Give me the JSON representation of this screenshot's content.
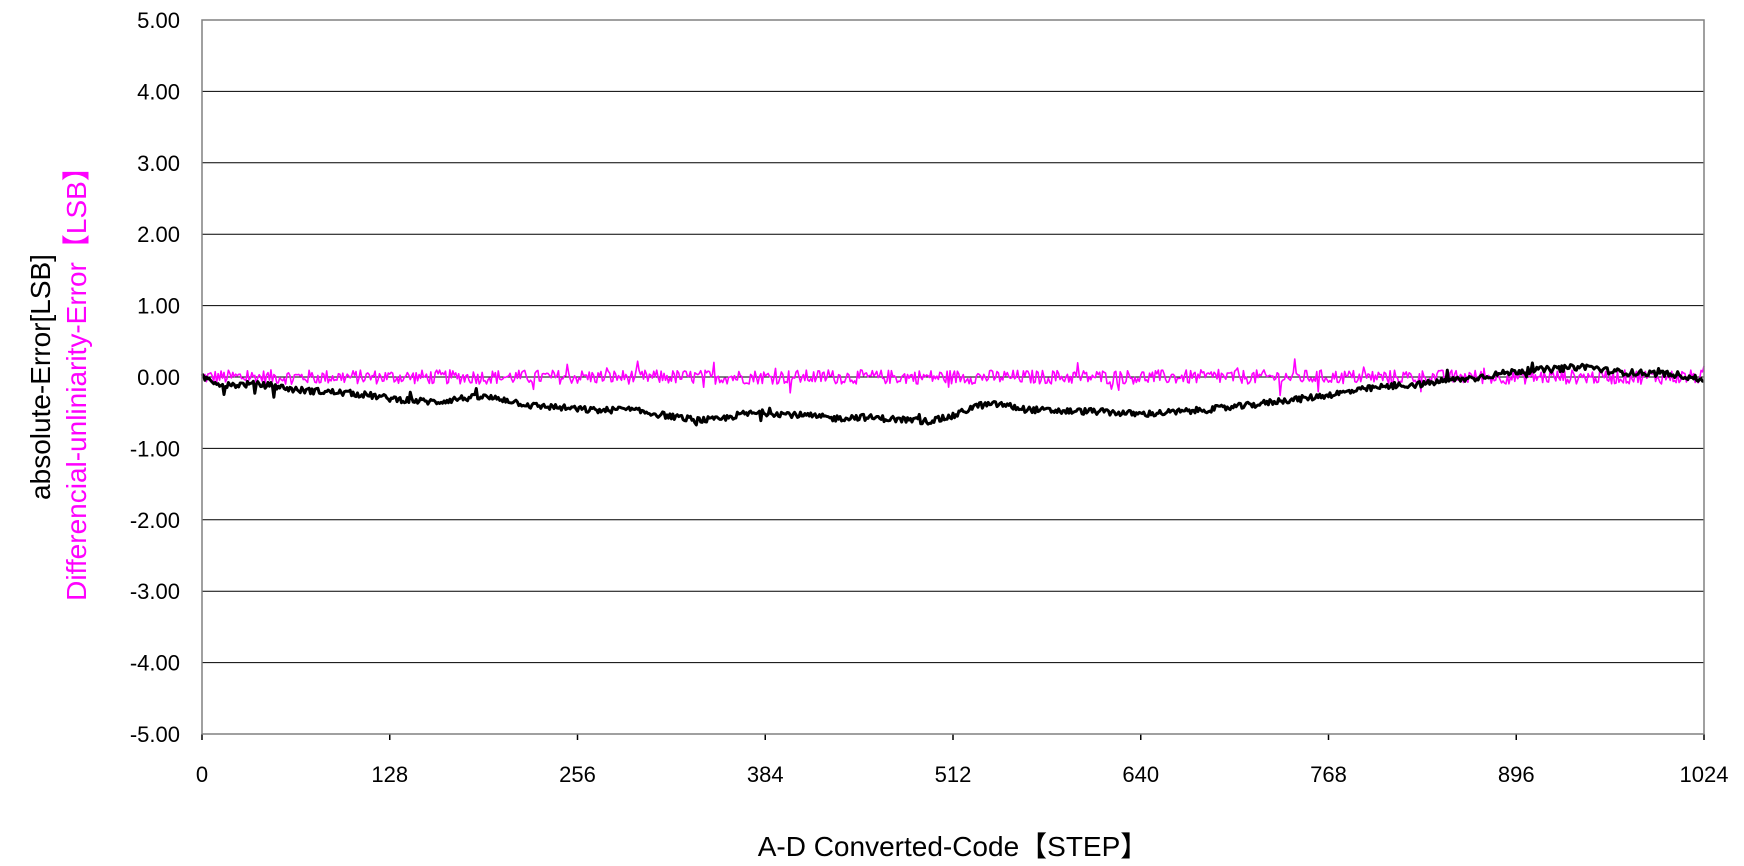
{
  "chart_data": {
    "type": "line",
    "title": "",
    "xlabel": "A-D Converted-Code【STEP】",
    "ylabel_lines": [
      {
        "text": "absolute-Error[LSB]",
        "color": "#000000"
      },
      {
        "text": "Differencial-unliniarity-Error【LSB】",
        "color": "#FF00FF"
      }
    ],
    "xlim": [
      0,
      1024
    ],
    "ylim": [
      -5,
      5
    ],
    "x_ticks": [
      "0",
      "128",
      "256",
      "384",
      "512",
      "640",
      "768",
      "896",
      "1024"
    ],
    "y_ticks": [
      "5.00",
      "4.00",
      "3.00",
      "2.00",
      "1.00",
      "0.00",
      "-1.00",
      "-2.00",
      "-3.00",
      "-4.00",
      "-5.00"
    ],
    "grid": "horizontal",
    "legend": "none",
    "series": [
      {
        "color": "#000000",
        "x": [
          0,
          16,
          32,
          48,
          64,
          80,
          96,
          112,
          128,
          144,
          160,
          176,
          192,
          208,
          224,
          240,
          256,
          272,
          288,
          304,
          320,
          336,
          352,
          368,
          384,
          400,
          416,
          432,
          448,
          464,
          480,
          496,
          512,
          528,
          544,
          560,
          576,
          592,
          608,
          624,
          640,
          656,
          672,
          688,
          704,
          720,
          736,
          752,
          768,
          784,
          800,
          816,
          832,
          848,
          864,
          880,
          896,
          912,
          928,
          944,
          960,
          976,
          992,
          1008,
          1024
        ],
        "y": [
          0.0,
          -0.12,
          -0.1,
          -0.12,
          -0.18,
          -0.2,
          -0.22,
          -0.25,
          -0.3,
          -0.33,
          -0.35,
          -0.3,
          -0.28,
          -0.32,
          -0.4,
          -0.42,
          -0.45,
          -0.47,
          -0.45,
          -0.5,
          -0.55,
          -0.6,
          -0.6,
          -0.52,
          -0.5,
          -0.52,
          -0.55,
          -0.58,
          -0.56,
          -0.58,
          -0.6,
          -0.62,
          -0.55,
          -0.4,
          -0.38,
          -0.45,
          -0.47,
          -0.48,
          -0.48,
          -0.5,
          -0.52,
          -0.5,
          -0.48,
          -0.45,
          -0.42,
          -0.38,
          -0.33,
          -0.3,
          -0.25,
          -0.2,
          -0.15,
          -0.12,
          -0.1,
          -0.05,
          -0.02,
          0.03,
          0.08,
          0.1,
          0.12,
          0.15,
          0.08,
          0.06,
          0.05,
          0.03,
          -0.05
        ]
      },
      {
        "color": "#FF00FF",
        "x": [
          0,
          1024
        ],
        "y": [
          0.0,
          0.0
        ],
        "noise_amplitude": 0.1
      }
    ]
  }
}
